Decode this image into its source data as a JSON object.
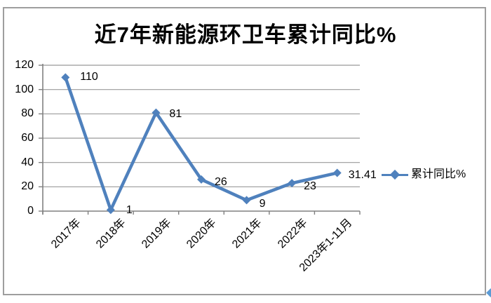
{
  "window": {
    "background": "#ffffff",
    "border_color": "#9e9e9e"
  },
  "chart_data": {
    "type": "line",
    "title": "近7年新能源环卫车累计同比%",
    "categories": [
      "2017年",
      "2018年",
      "2019年",
      "2020年",
      "2021年",
      "2022年",
      "2023年1-11月"
    ],
    "series": [
      {
        "name": "累计同比%",
        "values": [
          110,
          1,
          81,
          26,
          9,
          23,
          31.41
        ]
      }
    ],
    "data_labels": [
      "110",
      "1",
      "81",
      "26",
      "9",
      "23",
      "31.41"
    ],
    "xlabel": "",
    "ylabel": "",
    "ylim": [
      0,
      120
    ],
    "yticks": [
      "0",
      "20",
      "40",
      "60",
      "80",
      "100",
      "120"
    ],
    "grid": true,
    "legend_position": "right",
    "line_color": "#4F81BD",
    "marker": "diamond",
    "gridline_color": "#999999",
    "axis_color": "#808080"
  },
  "legend": {
    "label": "累计同比%"
  },
  "decorations": {
    "corner_diamond_color": "#5b9bd5"
  }
}
